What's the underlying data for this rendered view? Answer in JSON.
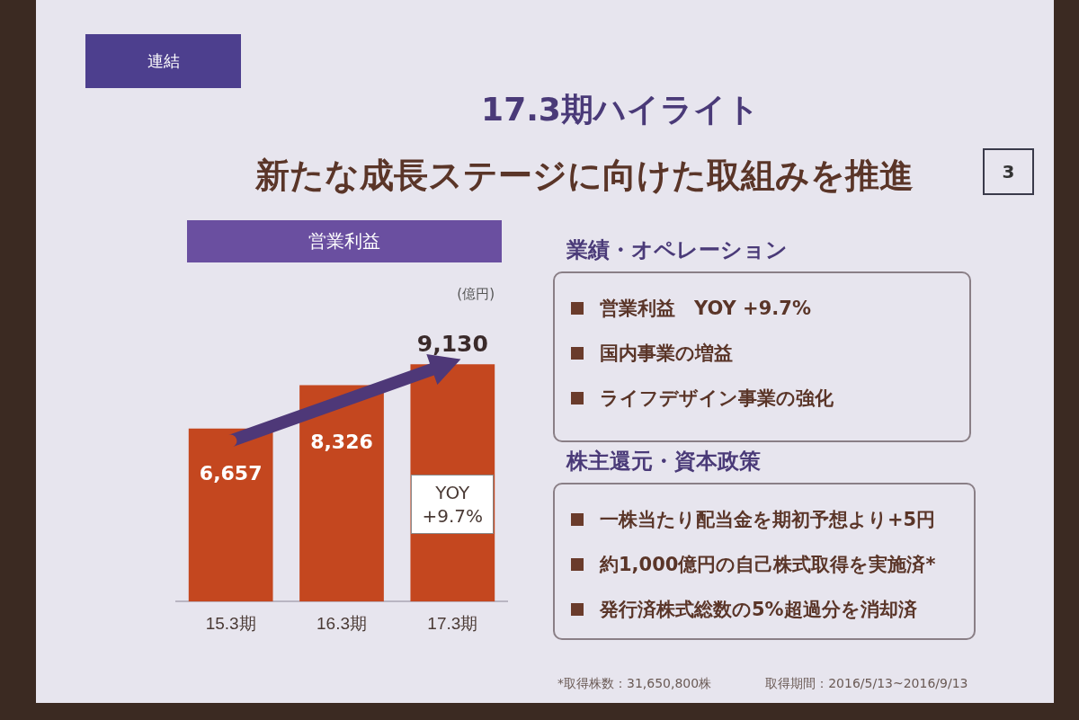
{
  "chart_data": [
    {
      "type": "other",
      "title": "17.3期ハイライト",
      "subtitle": "新たな成長ステージに向けた取組みを推進",
      "annotations": [
        "連結",
        "3"
      ]
    },
    {
      "type": "bar",
      "title": "営業利益",
      "categories": [
        "15.3期",
        "16.3期",
        "17.3期"
      ],
      "values": [
        6657,
        8326,
        9130
      ],
      "value_labels": [
        "6,657",
        "8,326",
        "9,130"
      ],
      "color": "#c4471f",
      "tick_labels": "x",
      "annotations": [
        "(億円)",
        "YOY +9.7%"
      ]
    },
    {
      "type": "other",
      "title": "業績・オペレーション",
      "annotations": [
        "営業利益　YOY +9.7%",
        "国内事業の増益",
        "ライフデザイン事業の強化"
      ]
    },
    {
      "type": "other",
      "title": "株主還元・資本政策",
      "annotations": [
        "一株当たり配当金を期初予想より+5円",
        "約1,000億円の自己株式取得を実施済*",
        "発行済株式総数の5%超過分を消却済"
      ]
    },
    {
      "type": "other",
      "annotations": [
        "*取得株数：31,650,800株",
        "取得期間：2016/5/13~2016/9/13"
      ]
    }
  ]
}
